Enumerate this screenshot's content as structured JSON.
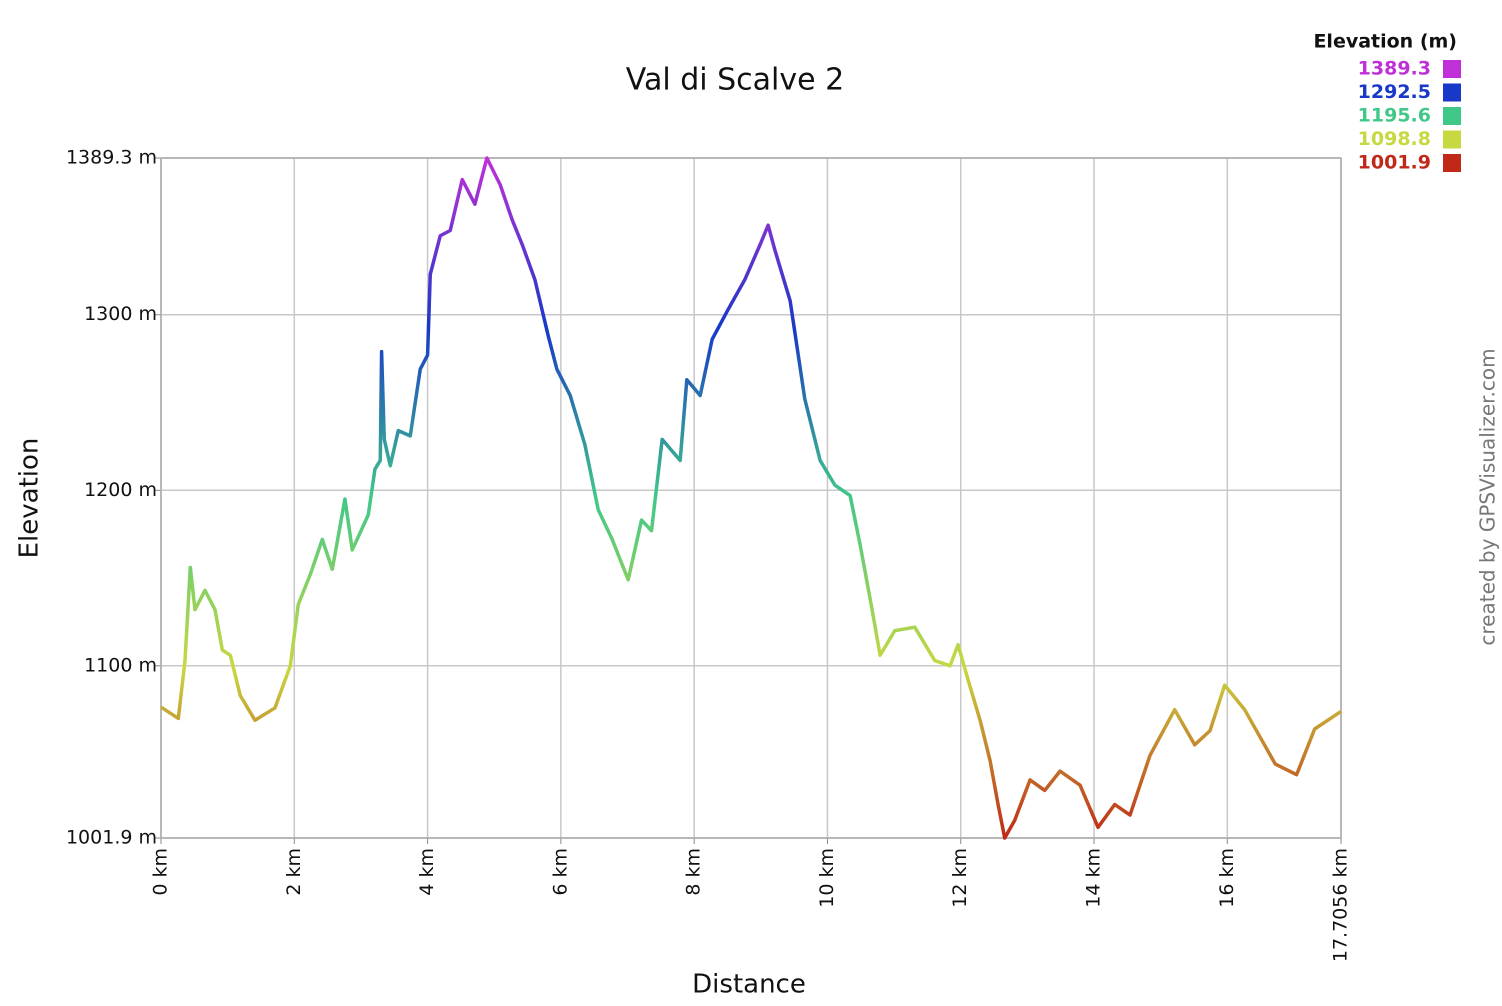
{
  "chart_data": {
    "type": "line",
    "title": "Val di Scalve 2",
    "x_label": "Distance",
    "y_label": "Elevation",
    "credit": "created by GPSVisualizer.com",
    "x": [
      0,
      0.26,
      0.36,
      0.44,
      0.51,
      0.66,
      0.81,
      0.92,
      1.04,
      1.19,
      1.41,
      1.71,
      1.94,
      2.06,
      2.24,
      2.42,
      2.57,
      2.76,
      2.87,
      3.11,
      3.21,
      3.29,
      3.31,
      3.35,
      3.44,
      3.56,
      3.74,
      3.89,
      4.0,
      4.04,
      4.19,
      4.34,
      4.52,
      4.71,
      4.89,
      5.09,
      5.27,
      5.42,
      5.61,
      5.81,
      5.94,
      6.14,
      6.36,
      6.56,
      6.77,
      7.01,
      7.21,
      7.36,
      7.52,
      7.79,
      7.89,
      8.09,
      8.27,
      8.51,
      8.76,
      8.99,
      9.11,
      9.21,
      9.44,
      9.66,
      9.89,
      10.11,
      10.34,
      10.49,
      10.67,
      10.79,
      11.01,
      11.31,
      11.61,
      11.84,
      11.96,
      12.11,
      12.29,
      12.44,
      12.56,
      12.66,
      12.81,
      13.04,
      13.26,
      13.49,
      13.79,
      14.06,
      14.31,
      14.54,
      14.84,
      15.21,
      15.51,
      15.74,
      15.96,
      16.26,
      16.72,
      17.04,
      17.31,
      17.7056
    ],
    "values": [
      1076.5,
      1070,
      1103,
      1156,
      1132,
      1143,
      1132,
      1109,
      1106,
      1083,
      1069,
      1076,
      1100,
      1135,
      1152,
      1172,
      1155,
      1195,
      1166,
      1186,
      1212,
      1217,
      1279,
      1229,
      1214,
      1234,
      1231,
      1269,
      1277,
      1323,
      1345,
      1348,
      1377,
      1363,
      1389.3,
      1374,
      1354,
      1340,
      1320,
      1288,
      1269,
      1254,
      1226,
      1189,
      1172,
      1149,
      1183,
      1177,
      1229,
      1217,
      1263,
      1254,
      1286,
      1303,
      1320,
      1340,
      1351,
      1337,
      1308,
      1252,
      1217,
      1203,
      1197,
      1169,
      1132,
      1106,
      1120,
      1122,
      1103,
      1100,
      1112,
      1092,
      1069,
      1046,
      1021,
      1001.9,
      1012,
      1035,
      1029,
      1040,
      1032,
      1008,
      1021,
      1015,
      1049,
      1075,
      1055,
      1063,
      1089,
      1075,
      1044,
      1038,
      1064,
      1074
    ],
    "xlim": [
      0,
      17.7056
    ],
    "xticks": [
      {
        "value": 0,
        "label": "0 km"
      },
      {
        "value": 2,
        "label": "2 km"
      },
      {
        "value": 4,
        "label": "4 km"
      },
      {
        "value": 6,
        "label": "6 km"
      },
      {
        "value": 8,
        "label": "8 km"
      },
      {
        "value": 10,
        "label": "10 km"
      },
      {
        "value": 12,
        "label": "12 km"
      },
      {
        "value": 14,
        "label": "14 km"
      },
      {
        "value": 16,
        "label": "16 km"
      },
      {
        "value": 17.7056,
        "label": "17.7056 km"
      }
    ],
    "ylim": [
      1001.9,
      1389.3
    ],
    "yticks": [
      {
        "value": 1001.9,
        "label": "1001.9 m"
      },
      {
        "value": 1100,
        "label": "1100 m"
      },
      {
        "value": 1200,
        "label": "1200 m"
      },
      {
        "value": 1300,
        "label": "1300 m"
      },
      {
        "value": 1389.3,
        "label": "1389.3 m"
      }
    ],
    "grid": true,
    "color_scale": {
      "title": "Elevation (m)",
      "values": [
        1389.3,
        1292.5,
        1195.6,
        1098.8,
        1001.9
      ],
      "colors": [
        "#c030d8",
        "#1838c8",
        "#40c888",
        "#c8d840",
        "#c02818"
      ]
    }
  }
}
